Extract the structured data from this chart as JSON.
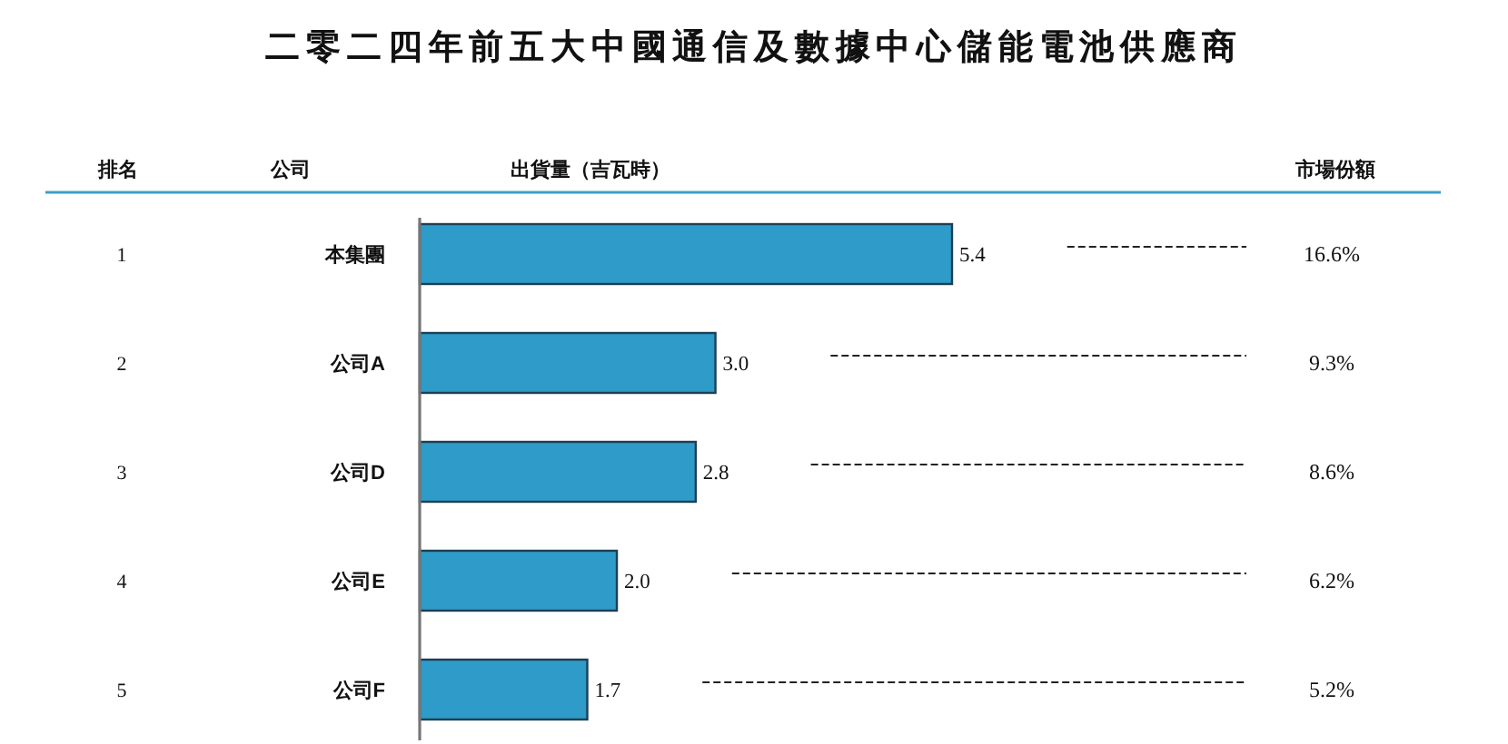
{
  "chart_data": {
    "type": "bar",
    "orientation": "horizontal",
    "title": "二零二四年前五大中國通信及數據中心儲能電池供應商",
    "xlabel": "出貨量（吉瓦時）",
    "ylabel": "公司",
    "categories": [
      "本集團",
      "公司A",
      "公司D",
      "公司E",
      "公司F"
    ],
    "values": [
      5.4,
      3.0,
      2.8,
      2.0,
      1.7
    ],
    "value_labels": [
      "5.4",
      "3.0",
      "2.8",
      "2.0",
      "1.7"
    ],
    "color": "#2e9bc9",
    "annotations": [
      "排名",
      "市場份額",
      "1",
      "2",
      "3",
      "4",
      "5",
      "16.6%",
      "9.3%",
      "8.6%",
      "6.2%",
      "5.2%"
    ]
  }
}
